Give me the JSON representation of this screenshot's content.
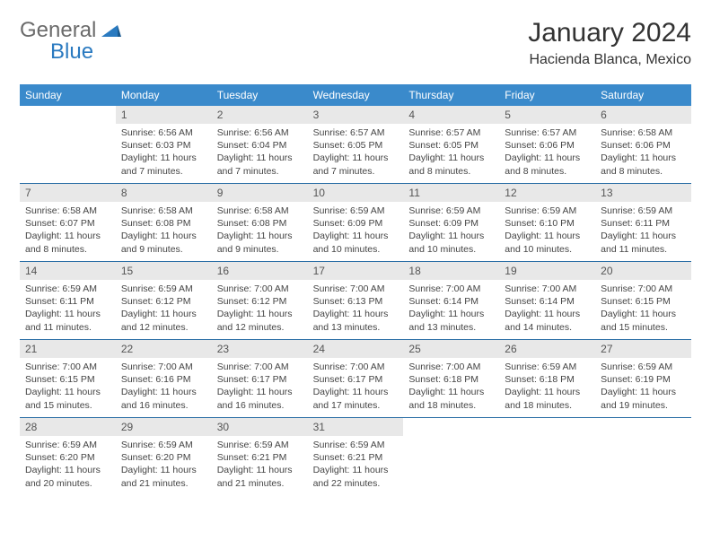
{
  "logo": {
    "part1": "General",
    "part2": "Blue"
  },
  "title": "January 2024",
  "subtitle": "Hacienda Blanca, Mexico",
  "colors": {
    "header_bg": "#3a8acb",
    "header_text": "#ffffff",
    "daynum_bg": "#e8e8e8",
    "daynum_text": "#555555",
    "body_text": "#444444",
    "divider": "#2a6ea5",
    "logo_gray": "#6b6b6b",
    "logo_blue": "#2a7ac0"
  },
  "weekdays": [
    "Sunday",
    "Monday",
    "Tuesday",
    "Wednesday",
    "Thursday",
    "Friday",
    "Saturday"
  ],
  "weeks": [
    [
      null,
      {
        "num": "1",
        "sunrise": "Sunrise: 6:56 AM",
        "sunset": "Sunset: 6:03 PM",
        "daylight": "Daylight: 11 hours and 7 minutes."
      },
      {
        "num": "2",
        "sunrise": "Sunrise: 6:56 AM",
        "sunset": "Sunset: 6:04 PM",
        "daylight": "Daylight: 11 hours and 7 minutes."
      },
      {
        "num": "3",
        "sunrise": "Sunrise: 6:57 AM",
        "sunset": "Sunset: 6:05 PM",
        "daylight": "Daylight: 11 hours and 7 minutes."
      },
      {
        "num": "4",
        "sunrise": "Sunrise: 6:57 AM",
        "sunset": "Sunset: 6:05 PM",
        "daylight": "Daylight: 11 hours and 8 minutes."
      },
      {
        "num": "5",
        "sunrise": "Sunrise: 6:57 AM",
        "sunset": "Sunset: 6:06 PM",
        "daylight": "Daylight: 11 hours and 8 minutes."
      },
      {
        "num": "6",
        "sunrise": "Sunrise: 6:58 AM",
        "sunset": "Sunset: 6:06 PM",
        "daylight": "Daylight: 11 hours and 8 minutes."
      }
    ],
    [
      {
        "num": "7",
        "sunrise": "Sunrise: 6:58 AM",
        "sunset": "Sunset: 6:07 PM",
        "daylight": "Daylight: 11 hours and 8 minutes."
      },
      {
        "num": "8",
        "sunrise": "Sunrise: 6:58 AM",
        "sunset": "Sunset: 6:08 PM",
        "daylight": "Daylight: 11 hours and 9 minutes."
      },
      {
        "num": "9",
        "sunrise": "Sunrise: 6:58 AM",
        "sunset": "Sunset: 6:08 PM",
        "daylight": "Daylight: 11 hours and 9 minutes."
      },
      {
        "num": "10",
        "sunrise": "Sunrise: 6:59 AM",
        "sunset": "Sunset: 6:09 PM",
        "daylight": "Daylight: 11 hours and 10 minutes."
      },
      {
        "num": "11",
        "sunrise": "Sunrise: 6:59 AM",
        "sunset": "Sunset: 6:09 PM",
        "daylight": "Daylight: 11 hours and 10 minutes."
      },
      {
        "num": "12",
        "sunrise": "Sunrise: 6:59 AM",
        "sunset": "Sunset: 6:10 PM",
        "daylight": "Daylight: 11 hours and 10 minutes."
      },
      {
        "num": "13",
        "sunrise": "Sunrise: 6:59 AM",
        "sunset": "Sunset: 6:11 PM",
        "daylight": "Daylight: 11 hours and 11 minutes."
      }
    ],
    [
      {
        "num": "14",
        "sunrise": "Sunrise: 6:59 AM",
        "sunset": "Sunset: 6:11 PM",
        "daylight": "Daylight: 11 hours and 11 minutes."
      },
      {
        "num": "15",
        "sunrise": "Sunrise: 6:59 AM",
        "sunset": "Sunset: 6:12 PM",
        "daylight": "Daylight: 11 hours and 12 minutes."
      },
      {
        "num": "16",
        "sunrise": "Sunrise: 7:00 AM",
        "sunset": "Sunset: 6:12 PM",
        "daylight": "Daylight: 11 hours and 12 minutes."
      },
      {
        "num": "17",
        "sunrise": "Sunrise: 7:00 AM",
        "sunset": "Sunset: 6:13 PM",
        "daylight": "Daylight: 11 hours and 13 minutes."
      },
      {
        "num": "18",
        "sunrise": "Sunrise: 7:00 AM",
        "sunset": "Sunset: 6:14 PM",
        "daylight": "Daylight: 11 hours and 13 minutes."
      },
      {
        "num": "19",
        "sunrise": "Sunrise: 7:00 AM",
        "sunset": "Sunset: 6:14 PM",
        "daylight": "Daylight: 11 hours and 14 minutes."
      },
      {
        "num": "20",
        "sunrise": "Sunrise: 7:00 AM",
        "sunset": "Sunset: 6:15 PM",
        "daylight": "Daylight: 11 hours and 15 minutes."
      }
    ],
    [
      {
        "num": "21",
        "sunrise": "Sunrise: 7:00 AM",
        "sunset": "Sunset: 6:15 PM",
        "daylight": "Daylight: 11 hours and 15 minutes."
      },
      {
        "num": "22",
        "sunrise": "Sunrise: 7:00 AM",
        "sunset": "Sunset: 6:16 PM",
        "daylight": "Daylight: 11 hours and 16 minutes."
      },
      {
        "num": "23",
        "sunrise": "Sunrise: 7:00 AM",
        "sunset": "Sunset: 6:17 PM",
        "daylight": "Daylight: 11 hours and 16 minutes."
      },
      {
        "num": "24",
        "sunrise": "Sunrise: 7:00 AM",
        "sunset": "Sunset: 6:17 PM",
        "daylight": "Daylight: 11 hours and 17 minutes."
      },
      {
        "num": "25",
        "sunrise": "Sunrise: 7:00 AM",
        "sunset": "Sunset: 6:18 PM",
        "daylight": "Daylight: 11 hours and 18 minutes."
      },
      {
        "num": "26",
        "sunrise": "Sunrise: 6:59 AM",
        "sunset": "Sunset: 6:18 PM",
        "daylight": "Daylight: 11 hours and 18 minutes."
      },
      {
        "num": "27",
        "sunrise": "Sunrise: 6:59 AM",
        "sunset": "Sunset: 6:19 PM",
        "daylight": "Daylight: 11 hours and 19 minutes."
      }
    ],
    [
      {
        "num": "28",
        "sunrise": "Sunrise: 6:59 AM",
        "sunset": "Sunset: 6:20 PM",
        "daylight": "Daylight: 11 hours and 20 minutes."
      },
      {
        "num": "29",
        "sunrise": "Sunrise: 6:59 AM",
        "sunset": "Sunset: 6:20 PM",
        "daylight": "Daylight: 11 hours and 21 minutes."
      },
      {
        "num": "30",
        "sunrise": "Sunrise: 6:59 AM",
        "sunset": "Sunset: 6:21 PM",
        "daylight": "Daylight: 11 hours and 21 minutes."
      },
      {
        "num": "31",
        "sunrise": "Sunrise: 6:59 AM",
        "sunset": "Sunset: 6:21 PM",
        "daylight": "Daylight: 11 hours and 22 minutes."
      },
      null,
      null,
      null
    ]
  ]
}
